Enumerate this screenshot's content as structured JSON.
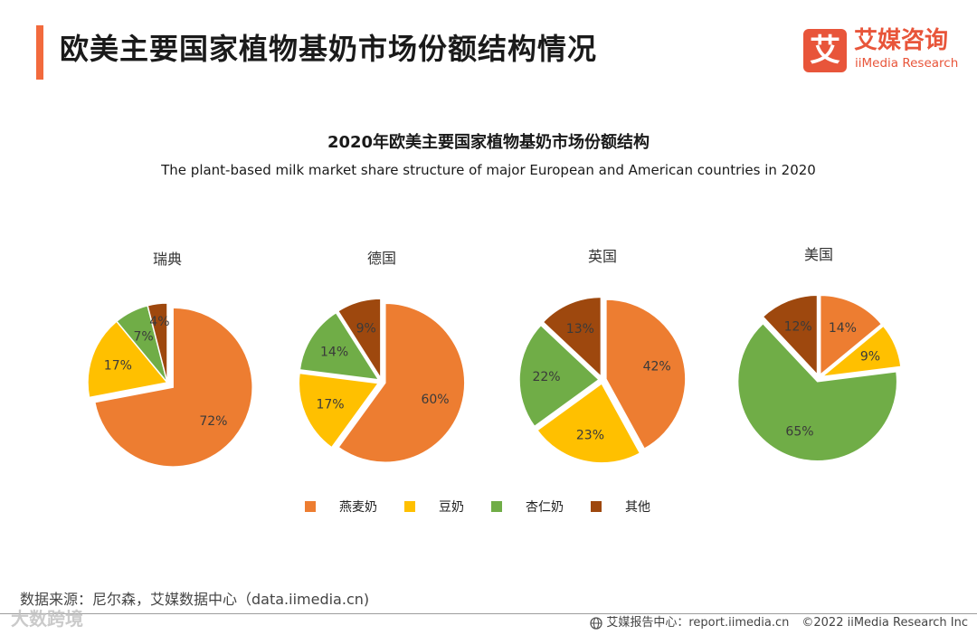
{
  "header": {
    "title": "欧美主要国家植物基奶市场份额结构情况",
    "accent_color": "#f26a3d"
  },
  "logo": {
    "mark": "艾",
    "name_cn": "艾媒咨询",
    "name_en": "iiMedia Research",
    "color": "#e8553a"
  },
  "chart_data": {
    "type": "pie",
    "title": "2020年欧美主要国家植物基奶市场份额结构",
    "subtitle": "The plant-based milk market share structure of major European and American countries in 2020",
    "categories": [
      "燕麦奶",
      "豆奶",
      "杏仁奶",
      "其他"
    ],
    "colors": [
      "#ed7d31",
      "#ffc000",
      "#70ad47",
      "#9e480e"
    ],
    "unit": "%",
    "charts": [
      {
        "name": "瑞典",
        "values": [
          72,
          17,
          7,
          4
        ]
      },
      {
        "name": "德国",
        "values": [
          60,
          17,
          14,
          9
        ]
      },
      {
        "name": "英国",
        "values": [
          42,
          23,
          22,
          13
        ]
      },
      {
        "name": "美国",
        "values": [
          14,
          9,
          65,
          12
        ]
      }
    ],
    "legend_position": "bottom"
  },
  "footer": {
    "source": "数据来源：尼尔森，艾媒数据中心（data.iimedia.cn)",
    "report_center": "艾媒报告中心：report.iimedia.cn",
    "copyright": "©2022  iiMedia Research  Inc",
    "watermark": "大数跨境"
  }
}
